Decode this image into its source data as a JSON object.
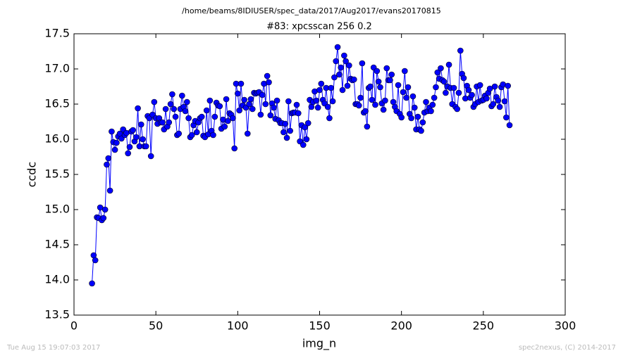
{
  "chart_data": {
    "type": "line",
    "suptitle": "/home/beams/8IDIUSER/spec_data/2017/Aug2017/evans20170815",
    "title": "#83: xpcsscan 256 0.2",
    "xlabel": "img_n",
    "ylabel": "ccdc",
    "footer_left": "Tue Aug 15 19:07:03 2017",
    "footer_right": "spec2nexus, (C) 2014-2017",
    "xlim": [
      0,
      300
    ],
    "xticks": [
      0,
      50,
      100,
      150,
      200,
      250,
      300
    ],
    "ylim": [
      13.5,
      17.5
    ],
    "yticks": [
      13.5,
      {
        "value": 14,
        "label": "14.0"
      },
      14.5,
      {
        "value": 15,
        "label": "15.0"
      },
      15.5,
      {
        "value": 16,
        "label": "16.0"
      },
      16.5,
      {
        "value": 17,
        "label": "17.0"
      },
      17.5
    ],
    "color": "#0000ff",
    "x": [
      11,
      12,
      13,
      14,
      15,
      16,
      17,
      18,
      19,
      20,
      21,
      22,
      23,
      24,
      25,
      26,
      27,
      28,
      29,
      30,
      31,
      32,
      33,
      34,
      35,
      36,
      37,
      38,
      39,
      40,
      41,
      42,
      43,
      44,
      45,
      46,
      47,
      48,
      49,
      50,
      51,
      52,
      53,
      54,
      55,
      56,
      57,
      58,
      59,
      60,
      61,
      62,
      63,
      64,
      65,
      66,
      67,
      68,
      69,
      70,
      71,
      72,
      73,
      74,
      75,
      76,
      77,
      78,
      79,
      80,
      81,
      82,
      83,
      84,
      85,
      86,
      87,
      88,
      89,
      90,
      91,
      92,
      93,
      94,
      95,
      96,
      97,
      98,
      99,
      100,
      101,
      102,
      103,
      104,
      105,
      106,
      107,
      108,
      109,
      110,
      111,
      112,
      113,
      114,
      115,
      116,
      117,
      118,
      119,
      120,
      121,
      122,
      123,
      124,
      125,
      126,
      127,
      128,
      129,
      130,
      131,
      132,
      133,
      134,
      135,
      136,
      137,
      138,
      139,
      140,
      141,
      142,
      143,
      144,
      145,
      146,
      147,
      148,
      149,
      150,
      151,
      152,
      153,
      154,
      155,
      156,
      157,
      158,
      159,
      160,
      161,
      162,
      163,
      164,
      165,
      166,
      167,
      168,
      169,
      170,
      171,
      172,
      173,
      174,
      175,
      176,
      177,
      178,
      179,
      180,
      181,
      182,
      183,
      184,
      185,
      186,
      187,
      188,
      189,
      190,
      191,
      192,
      193,
      194,
      195,
      196,
      197,
      198,
      199,
      200,
      201,
      202,
      203,
      204,
      205,
      206,
      207,
      208,
      209,
      210,
      211,
      212,
      213,
      214,
      215,
      216,
      217,
      218,
      219,
      220,
      221,
      222,
      223,
      224,
      225,
      226,
      227,
      228,
      229,
      230,
      231,
      232,
      233,
      234,
      235,
      236,
      237,
      238,
      239,
      240,
      241,
      242,
      243,
      244,
      245,
      246,
      247,
      248,
      249,
      250,
      251,
      252,
      253,
      254,
      255,
      256,
      257,
      258,
      259,
      260,
      261,
      262,
      263,
      264,
      265,
      266
    ],
    "values": [
      13.95,
      14.35,
      14.28,
      14.89,
      14.88,
      15.03,
      14.85,
      14.88,
      15.0,
      15.64,
      15.73,
      15.27,
      16.11,
      15.96,
      15.85,
      15.95,
      16.04,
      16.08,
      16.01,
      16.14,
      16.06,
      16.09,
      15.8,
      15.89,
      16.11,
      16.13,
      15.97,
      16.03,
      16.44,
      15.9,
      16.21,
      16.0,
      15.9,
      15.9,
      16.33,
      16.3,
      15.76,
      16.35,
      16.53,
      16.3,
      16.22,
      16.3,
      16.24,
      16.24,
      16.14,
      16.43,
      16.18,
      16.24,
      16.5,
      16.64,
      16.43,
      16.32,
      16.06,
      16.08,
      16.43,
      16.62,
      16.46,
      16.4,
      16.53,
      16.3,
      16.03,
      16.06,
      16.2,
      16.26,
      16.1,
      16.24,
      16.3,
      16.32,
      16.05,
      16.03,
      16.41,
      16.07,
      16.55,
      16.12,
      16.06,
      16.32,
      16.52,
      16.48,
      16.47,
      16.15,
      16.28,
      16.18,
      16.57,
      16.26,
      16.37,
      16.35,
      16.3,
      15.87,
      16.79,
      16.65,
      16.41,
      16.79,
      16.48,
      16.56,
      16.45,
      16.08,
      16.5,
      16.57,
      16.43,
      16.66,
      16.65,
      16.66,
      16.67,
      16.35,
      16.63,
      16.79,
      16.5,
      16.9,
      16.81,
      16.34,
      16.51,
      16.45,
      16.29,
      16.55,
      16.27,
      16.23,
      16.23,
      16.1,
      16.22,
      16.02,
      16.54,
      16.12,
      16.37,
      16.38,
      16.38,
      16.49,
      16.37,
      15.97,
      16.2,
      15.92,
      16.17,
      16.0,
      16.23,
      16.56,
      16.46,
      16.53,
      16.68,
      16.55,
      16.45,
      16.7,
      16.79,
      16.56,
      16.51,
      16.73,
      16.46,
      16.3,
      16.73,
      16.54,
      16.88,
      17.11,
      17.31,
      16.92,
      17.02,
      16.7,
      17.19,
      17.11,
      16.76,
      17.05,
      16.86,
      16.84,
      16.85,
      16.5,
      16.5,
      16.48,
      16.59,
      17.08,
      16.38,
      16.4,
      16.18,
      16.73,
      16.75,
      16.56,
      17.02,
      16.49,
      16.97,
      16.82,
      16.74,
      16.51,
      16.42,
      16.55,
      17.01,
      16.84,
      16.84,
      16.92,
      16.53,
      16.46,
      16.4,
      16.77,
      16.36,
      16.31,
      16.67,
      16.97,
      16.59,
      16.74,
      16.36,
      16.3,
      16.61,
      16.45,
      16.14,
      16.32,
      16.14,
      16.12,
      16.24,
      16.38,
      16.53,
      16.4,
      16.45,
      16.4,
      16.49,
      16.59,
      16.74,
      16.95,
      16.86,
      17.01,
      16.84,
      16.82,
      16.66,
      16.75,
      17.06,
      16.73,
      16.5,
      16.73,
      16.46,
      16.43,
      16.66,
      17.26,
      16.93,
      16.87,
      16.58,
      16.76,
      16.7,
      16.59,
      16.63,
      16.46,
      16.5,
      16.75,
      16.53,
      16.77,
      16.55,
      16.56,
      16.62,
      16.58,
      16.66,
      16.72,
      16.47,
      16.5,
      16.75,
      16.6,
      16.55,
      16.46,
      16.74,
      16.78,
      16.54,
      16.31,
      16.76,
      16.2
    ]
  }
}
